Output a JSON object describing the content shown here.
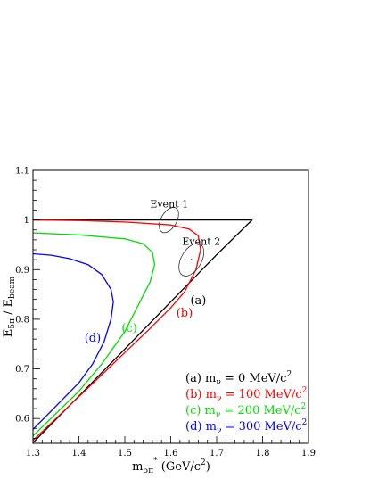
{
  "chart_data": {
    "type": "line",
    "xlabel": "m",
    "xlabel_sub": "5π",
    "xlabel_sup": "*",
    "xlabel_unit": " (GeV/c",
    "xlabel_unit_sup": "2",
    "xlabel_unit_close": ")",
    "ylabel_main": "E",
    "ylabel_sub": "5π",
    "ylabel_sep": " / E",
    "ylabel_sub2": "beam",
    "xlim": [
      1.3,
      1.9
    ],
    "ylim": [
      0.55,
      1.1
    ],
    "xticks": [
      "1.3",
      "1.4",
      "1.5",
      "1.6",
      "1.7",
      "1.8",
      "1.9"
    ],
    "yticks": [
      "0.6",
      "0.7",
      "0.8",
      "0.9",
      "1",
      "1.1"
    ],
    "grid": false,
    "legend_position": "bottom-right",
    "legend": [
      {
        "prefix": "(a) m",
        "sub": "ν",
        "value": " = 0 MeV/c",
        "sup": "2",
        "color": "#000000"
      },
      {
        "prefix": "(b) m",
        "sub": "ν",
        "value": " = 100 MeV/c",
        "sup": "2",
        "color": "#ff0000"
      },
      {
        "prefix": "(c) m",
        "sub": "ν",
        "value": " = 200 MeV/c",
        "sup": "2",
        "color": "#00dd00"
      },
      {
        "prefix": "(d) m",
        "sub": "ν",
        "value": " = 300 MeV/c",
        "sup": "2",
        "color": "#0000ff"
      }
    ],
    "series": [
      {
        "label": "(a)",
        "color": "#000000",
        "label_at": [
          1.66,
          0.83
        ],
        "points": [
          [
            1.3,
            0.551
          ],
          [
            1.4,
            0.645
          ],
          [
            1.5,
            0.74
          ],
          [
            1.6,
            0.835
          ],
          [
            1.7,
            0.93
          ],
          [
            1.777,
            1.0
          ],
          [
            1.6,
            1.0
          ],
          [
            1.5,
            1.0
          ],
          [
            1.4,
            1.0
          ],
          [
            1.3,
            1.0
          ]
        ]
      },
      {
        "label": "(b)",
        "color": "#ff0000",
        "label_at": [
          1.63,
          0.805
        ],
        "points": [
          [
            1.3,
            0.556
          ],
          [
            1.35,
            0.6
          ],
          [
            1.4,
            0.644
          ],
          [
            1.45,
            0.688
          ],
          [
            1.5,
            0.733
          ],
          [
            1.55,
            0.777
          ],
          [
            1.6,
            0.823
          ],
          [
            1.63,
            0.855
          ],
          [
            1.655,
            0.9
          ],
          [
            1.665,
            0.94
          ],
          [
            1.66,
            0.968
          ],
          [
            1.64,
            0.982
          ],
          [
            1.6,
            0.99
          ],
          [
            1.5,
            0.996
          ],
          [
            1.4,
            0.999
          ],
          [
            1.3,
            1.0
          ]
        ]
      },
      {
        "label": "(c)",
        "color": "#00dd00",
        "label_at": [
          1.51,
          0.775
        ],
        "points": [
          [
            1.3,
            0.565
          ],
          [
            1.35,
            0.61
          ],
          [
            1.4,
            0.655
          ],
          [
            1.45,
            0.71
          ],
          [
            1.5,
            0.775
          ],
          [
            1.53,
            0.83
          ],
          [
            1.555,
            0.875
          ],
          [
            1.565,
            0.91
          ],
          [
            1.56,
            0.935
          ],
          [
            1.54,
            0.952
          ],
          [
            1.5,
            0.962
          ],
          [
            1.4,
            0.97
          ],
          [
            1.3,
            0.974
          ]
        ]
      },
      {
        "label": "(d)",
        "color": "#0000ff",
        "label_at": [
          1.43,
          0.755
        ],
        "points": [
          [
            1.3,
            0.578
          ],
          [
            1.35,
            0.625
          ],
          [
            1.4,
            0.672
          ],
          [
            1.43,
            0.71
          ],
          [
            1.455,
            0.755
          ],
          [
            1.47,
            0.8
          ],
          [
            1.475,
            0.835
          ],
          [
            1.47,
            0.86
          ],
          [
            1.45,
            0.89
          ],
          [
            1.42,
            0.91
          ],
          [
            1.38,
            0.922
          ],
          [
            1.34,
            0.929
          ],
          [
            1.3,
            0.932
          ]
        ]
      }
    ],
    "events": [
      {
        "label": "Event 1",
        "x": 1.596,
        "y": 1.0,
        "rx": 0.017,
        "ry": 0.028,
        "label_at": [
          1.555,
          1.025
        ]
      },
      {
        "label": "Event 2",
        "x": 1.645,
        "y": 0.92,
        "rx": 0.022,
        "ry": 0.036,
        "label_at": [
          1.625,
          0.95
        ]
      }
    ]
  }
}
